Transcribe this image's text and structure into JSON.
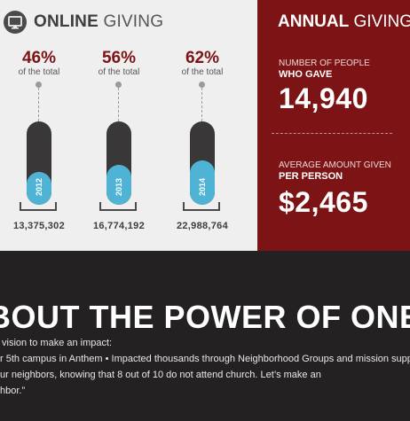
{
  "online": {
    "title_bold": "ONLINE",
    "title_light": "GIVING",
    "icon": "monitor-icon",
    "columns": [
      {
        "percent": "46%",
        "subtitle": "of the total",
        "year": "2012",
        "amount": "13,375,302",
        "fill": 0.46
      },
      {
        "percent": "56%",
        "subtitle": "of the total",
        "year": "2013",
        "amount": "16,774,192",
        "fill": 0.56
      },
      {
        "percent": "62%",
        "subtitle": "of the total",
        "year": "2014",
        "amount": "22,988,764",
        "fill": 0.62
      }
    ]
  },
  "annual": {
    "title_bold": "ANNUAL",
    "title_light": "GIVING",
    "people": {
      "label": "NUMBER OF PEOPLE",
      "label_bold": "WHO GAVE",
      "value": "14,940"
    },
    "average": {
      "label": "AVERAGE AMOUNT GIVEN",
      "label_bold": "PER PERSON",
      "value": "$2,465"
    }
  },
  "bottom": {
    "headline": "BOUT THE POWER OF ONE.",
    "lines": [
      "vision to make an impact:",
      "r 5th campus in Anthem  • Impacted thousands through Neighborhood Groups and mission support",
      "ur neighbors, knowing that 8 out of 10 do not attend church. Let’s make an",
      "hbor.”"
    ]
  },
  "colors": {
    "accent": "#7c1416",
    "fill": "#4fb3d6",
    "pill": "#3a3738",
    "dark": "#242122"
  }
}
